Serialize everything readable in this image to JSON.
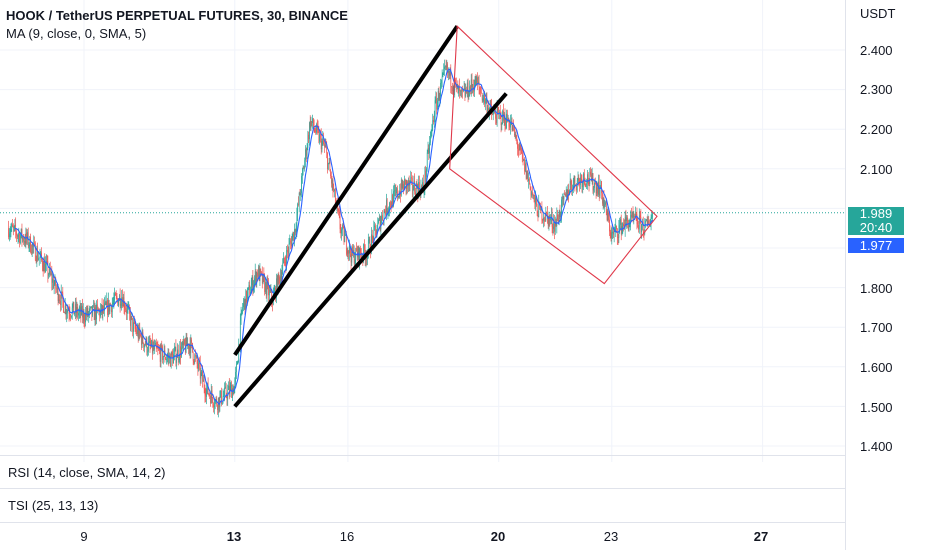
{
  "header": {
    "title": "HOOK / TetherUS PERPETUAL FUTURES, 30, BINANCE",
    "ma_legend": "MA (9, close, 0, SMA, 5)"
  },
  "price_axis": {
    "unit": "USDT",
    "labels": [
      "2.400",
      "2.300",
      "2.200",
      "2.100",
      "1.800",
      "1.700",
      "1.600",
      "1.500",
      "1.400"
    ]
  },
  "tags": {
    "last_price": "1.989",
    "countdown": "20:40",
    "ma_value": "1.977"
  },
  "indicators": {
    "rsi_label": "RSI (14, close, SMA, 14, 2)",
    "tsi_label": "TSI (25, 13, 13)"
  },
  "time_axis": {
    "labels": [
      "9",
      "13",
      "16",
      "20",
      "23",
      "27"
    ]
  },
  "colors": {
    "up": "#26a69a",
    "down": "#ef5350",
    "ma": "#2962ff",
    "trendline": "#000000",
    "channel": "#e0394a",
    "last_price_line": "#26a69a"
  },
  "chart_data": {
    "type": "candlestick",
    "title": "HOOK / TetherUS PERPETUAL FUTURES, 30, BINANCE",
    "ylabel": "USDT",
    "ylim": [
      1.4,
      2.45
    ],
    "last_price": 1.989,
    "ma_value": 1.977,
    "x_ticks": [
      "9",
      "13",
      "16",
      "20",
      "23",
      "27"
    ],
    "close_path": [
      {
        "day": 7.0,
        "price": 1.95
      },
      {
        "day": 7.5,
        "price": 1.92
      },
      {
        "day": 8.0,
        "price": 1.85
      },
      {
        "day": 8.5,
        "price": 1.75
      },
      {
        "day": 9.0,
        "price": 1.73
      },
      {
        "day": 9.5,
        "price": 1.74
      },
      {
        "day": 10.0,
        "price": 1.78
      },
      {
        "day": 10.3,
        "price": 1.7
      },
      {
        "day": 10.7,
        "price": 1.65
      },
      {
        "day": 11.3,
        "price": 1.62
      },
      {
        "day": 11.8,
        "price": 1.66
      },
      {
        "day": 12.2,
        "price": 1.55
      },
      {
        "day": 12.5,
        "price": 1.51
      },
      {
        "day": 13.0,
        "price": 1.55
      },
      {
        "day": 13.2,
        "price": 1.75
      },
      {
        "day": 13.6,
        "price": 1.84
      },
      {
        "day": 14.0,
        "price": 1.77
      },
      {
        "day": 14.6,
        "price": 1.95
      },
      {
        "day": 15.0,
        "price": 2.22
      },
      {
        "day": 15.4,
        "price": 2.15
      },
      {
        "day": 15.8,
        "price": 1.95
      },
      {
        "day": 16.1,
        "price": 1.88
      },
      {
        "day": 16.5,
        "price": 1.89
      },
      {
        "day": 17.0,
        "price": 2.0
      },
      {
        "day": 17.5,
        "price": 2.06
      },
      {
        "day": 18.0,
        "price": 2.05
      },
      {
        "day": 18.3,
        "price": 2.25
      },
      {
        "day": 18.6,
        "price": 2.35
      },
      {
        "day": 19.0,
        "price": 2.28
      },
      {
        "day": 19.4,
        "price": 2.32
      },
      {
        "day": 19.8,
        "price": 2.24
      },
      {
        "day": 20.3,
        "price": 2.22
      },
      {
        "day": 20.7,
        "price": 2.1
      },
      {
        "day": 21.0,
        "price": 2.0
      },
      {
        "day": 21.5,
        "price": 1.96
      },
      {
        "day": 21.9,
        "price": 2.06
      },
      {
        "day": 22.3,
        "price": 2.08
      },
      {
        "day": 22.7,
        "price": 2.05
      },
      {
        "day": 23.0,
        "price": 1.93
      },
      {
        "day": 23.3,
        "price": 1.96
      },
      {
        "day": 23.6,
        "price": 1.97
      },
      {
        "day": 23.9,
        "price": 1.95
      },
      {
        "day": 24.1,
        "price": 1.99
      }
    ],
    "drawings": [
      {
        "kind": "trendline",
        "from": {
          "day": 13.0,
          "price": 1.63
        },
        "to": {
          "day": 18.9,
          "price": 2.46
        }
      },
      {
        "kind": "trendline",
        "from": {
          "day": 13.0,
          "price": 1.5
        },
        "to": {
          "day": 20.2,
          "price": 2.29
        }
      },
      {
        "kind": "channel",
        "points": [
          {
            "day": 18.9,
            "price": 2.46
          },
          {
            "day": 24.2,
            "price": 1.98
          },
          {
            "day": 22.8,
            "price": 1.81
          },
          {
            "day": 18.7,
            "price": 2.1
          }
        ]
      }
    ]
  }
}
